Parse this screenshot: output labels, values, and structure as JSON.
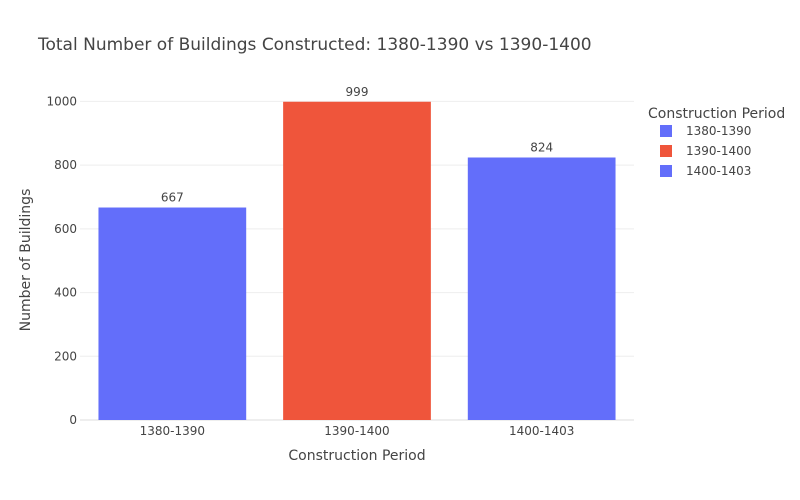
{
  "chart_data": {
    "type": "bar",
    "title": "Total Number of Buildings Constructed: 1380-1390 vs 1390-1400",
    "xlabel": "Construction Period",
    "ylabel": "Number of Buildings",
    "categories": [
      "1380-1390",
      "1390-1400",
      "1400-1403"
    ],
    "values": [
      667,
      999,
      824
    ],
    "value_labels": [
      "667",
      "999",
      "824"
    ],
    "bar_colors": [
      "#636efa",
      "#ef553b",
      "#636efa"
    ],
    "ylim": [
      0,
      1051.58
    ],
    "yticks": [
      0,
      200,
      400,
      600,
      800,
      1000
    ],
    "ytick_labels": [
      "0",
      "200",
      "400",
      "600",
      "800",
      "1000"
    ],
    "grid": true,
    "legend": {
      "title": "Construction Period",
      "placement": "right",
      "entries": [
        {
          "label": "1380-1390",
          "color": "#636efa"
        },
        {
          "label": "1390-1400",
          "color": "#ef553b"
        },
        {
          "label": "1400-1403",
          "color": "#636efa"
        }
      ]
    }
  }
}
